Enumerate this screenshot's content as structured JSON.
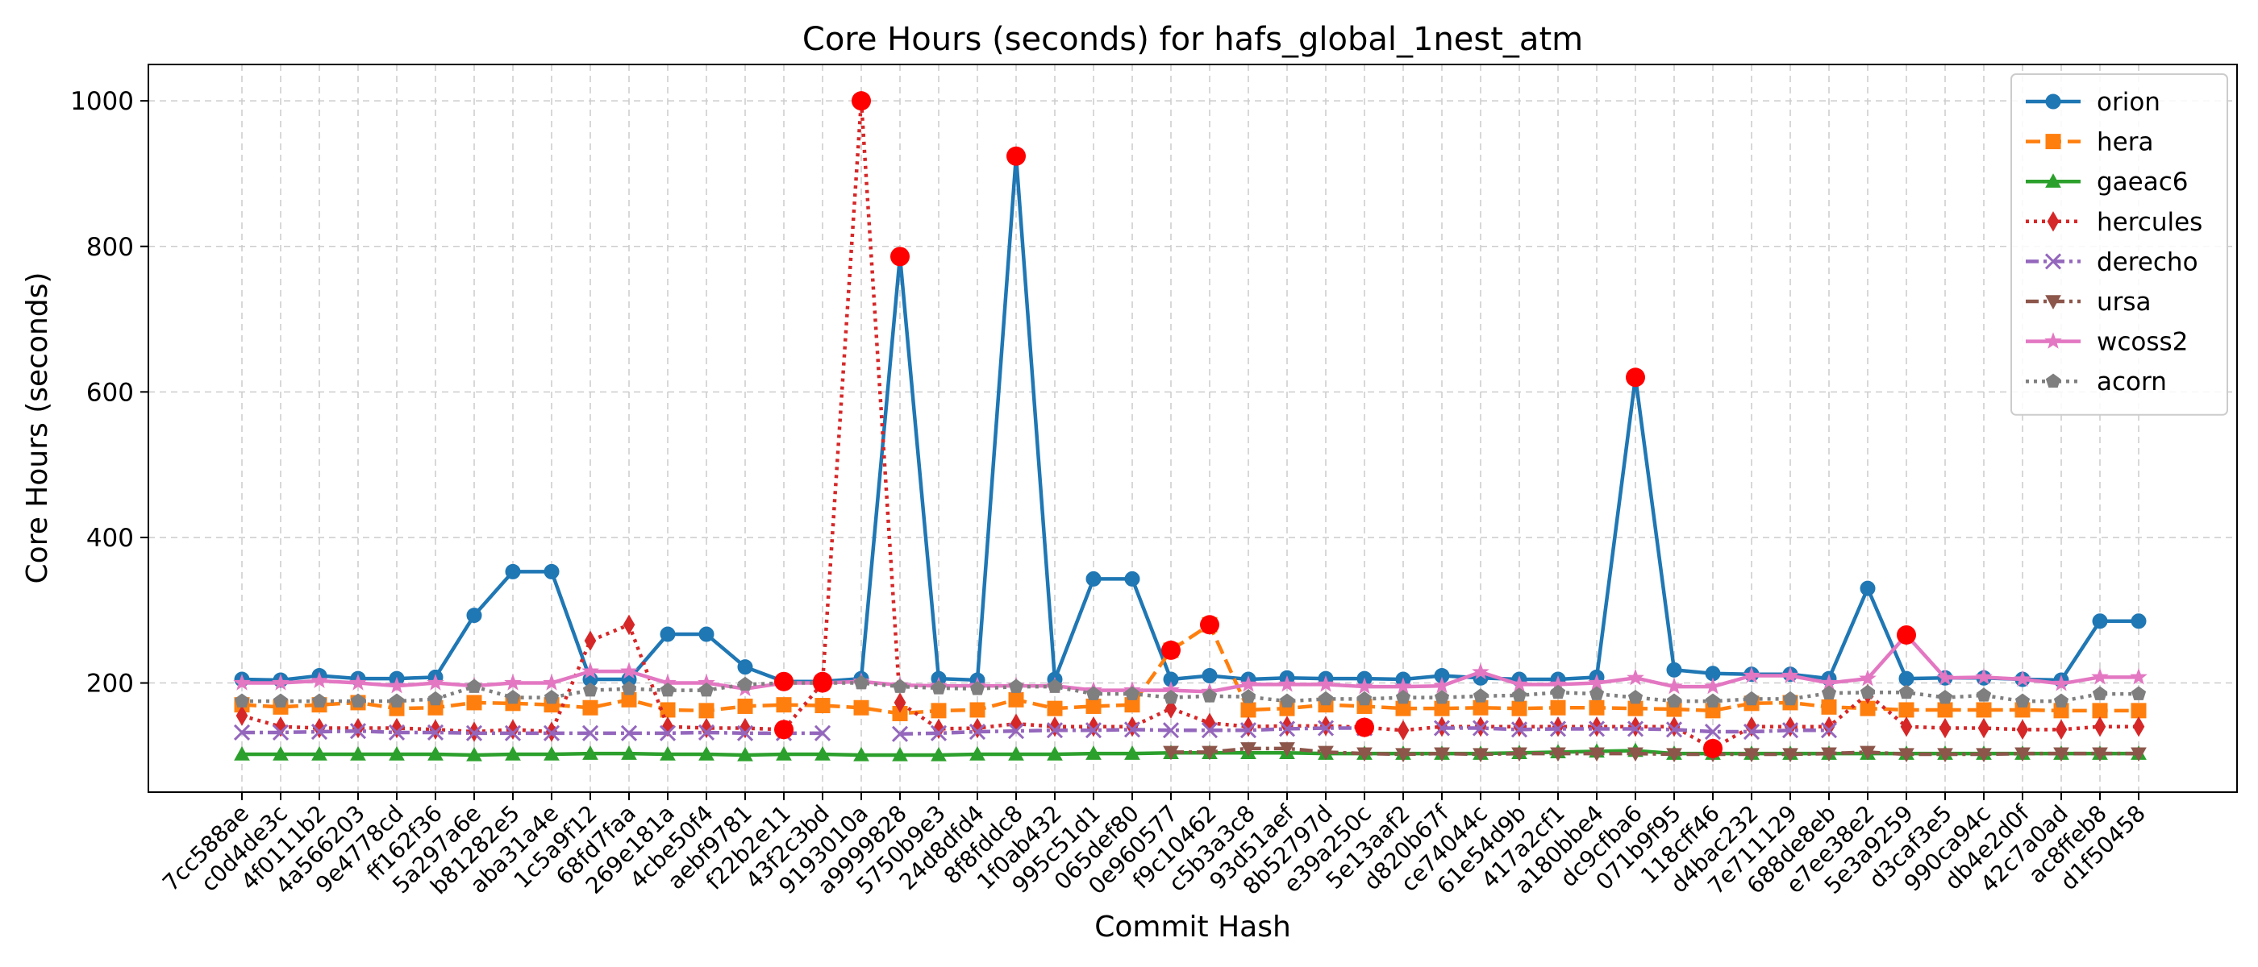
{
  "chart_data": {
    "type": "line",
    "title": "Core Hours (seconds) for hafs_global_1nest_atm",
    "xlabel": "Commit Hash",
    "ylabel": "Core Hours (seconds)",
    "ylim": [
      50,
      1050
    ],
    "yticks": [
      200,
      400,
      600,
      800,
      1000
    ],
    "grid": true,
    "legend_position": "top-right",
    "outlier_color": "#ff0000",
    "categories": [
      "7cc588ae",
      "c0d4de3c",
      "4f0111b2",
      "4a566203",
      "9e4778cd",
      "ff162f36",
      "5a297a6e",
      "b81282e5",
      "aba31a4e",
      "1c5a9f12",
      "68fd7faa",
      "269e181a",
      "4cbe50f4",
      "aebf9781",
      "f22b2e11",
      "43f2c3bd",
      "9193010a",
      "a9999828",
      "5750b9e3",
      "24d8dfd4",
      "8f8fddc8",
      "1f0ab432",
      "995c51d1",
      "065def80",
      "0e960577",
      "f9c10462",
      "c5b3a3c8",
      "93d51aef",
      "8b52797d",
      "e39a250c",
      "5e13aaf2",
      "d820b67f",
      "ce74044c",
      "61e54d9b",
      "417a2cf1",
      "a180bbe4",
      "dc9cfba6",
      "071b9f95",
      "118cff46",
      "d4bac232",
      "7e711129",
      "688de8eb",
      "e7ee38e2",
      "5e3a9259",
      "d3caf3e5",
      "990ca94c",
      "db4e2d0f",
      "42c7a0ad",
      "ac8ffeb8",
      "d1f50458"
    ],
    "series": [
      {
        "name": "orion",
        "color": "#1f77b4",
        "dash": "solid",
        "marker": "circle",
        "values": [
          205,
          204,
          210,
          206,
          206,
          208,
          293,
          353,
          353,
          205,
          205,
          267,
          267,
          222,
          202,
          202,
          206,
          786,
          206,
          204,
          924,
          205,
          343,
          343,
          205,
          210,
          205,
          207,
          206,
          206,
          205,
          210,
          207,
          205,
          205,
          208,
          620,
          218,
          213,
          212,
          212,
          206,
          330,
          206,
          207,
          207,
          205,
          204,
          285,
          285
        ],
        "outliers": [
          14,
          15,
          17,
          20,
          36
        ]
      },
      {
        "name": "hera",
        "color": "#ff7f0e",
        "dash": "dashed",
        "marker": "square",
        "values": [
          170,
          167,
          170,
          173,
          165,
          166,
          173,
          172,
          170,
          166,
          177,
          163,
          162,
          168,
          170,
          169,
          166,
          158,
          162,
          163,
          177,
          165,
          168,
          170,
          245,
          280,
          163,
          165,
          170,
          168,
          165,
          165,
          166,
          165,
          166,
          166,
          165,
          164,
          162,
          172,
          173,
          167,
          165,
          163,
          163,
          163,
          163,
          162,
          162,
          162
        ],
        "outliers": [
          24,
          25
        ]
      },
      {
        "name": "gaeac6",
        "color": "#2ca02c",
        "dash": "solid",
        "marker": "triangle-up",
        "values": [
          102,
          102,
          102,
          102,
          102,
          102,
          101,
          102,
          102,
          103,
          103,
          102,
          102,
          101,
          102,
          102,
          101,
          101,
          101,
          102,
          102,
          102,
          103,
          103,
          104,
          104,
          104,
          104,
          103,
          103,
          103,
          103,
          103,
          104,
          105,
          106,
          107,
          103,
          103,
          103,
          103,
          103,
          103,
          103,
          103,
          103,
          103,
          103,
          103,
          103
        ],
        "outliers": []
      },
      {
        "name": "hercules",
        "color": "#d62728",
        "dash": "dotted",
        "marker": "diamond",
        "values": [
          155,
          140,
          138,
          138,
          138,
          136,
          133,
          136,
          133,
          258,
          280,
          140,
          138,
          138,
          136,
          200,
          1000,
          173,
          137,
          138,
          144,
          140,
          140,
          140,
          165,
          145,
          140,
          141,
          141,
          139,
          135,
          140,
          140,
          140,
          140,
          140,
          140,
          140,
          110,
          140,
          140,
          140,
          185,
          140,
          138,
          138,
          136,
          136,
          140,
          140
        ],
        "outliers": [
          14,
          15,
          16,
          29,
          38
        ]
      },
      {
        "name": "derecho",
        "color": "#9467bd",
        "dash": "dashdot",
        "marker": "x",
        "values": [
          132,
          132,
          133,
          134,
          132,
          132,
          131,
          131,
          131,
          131,
          131,
          131,
          132,
          131,
          131,
          131,
          null,
          130,
          131,
          133,
          134,
          135,
          135,
          136,
          135,
          135,
          135,
          137,
          138,
          138,
          null,
          138,
          138,
          136,
          137,
          137,
          137,
          136,
          133,
          133,
          135,
          135,
          null,
          null,
          null,
          null,
          null,
          null,
          null,
          null
        ],
        "outliers": []
      },
      {
        "name": "ursa",
        "color": "#8c564b",
        "dash": "dashdot",
        "marker": "triangle-down",
        "values": [
          null,
          null,
          null,
          null,
          null,
          null,
          null,
          null,
          null,
          null,
          null,
          null,
          null,
          null,
          null,
          null,
          null,
          null,
          null,
          null,
          null,
          null,
          null,
          null,
          105,
          105,
          110,
          110,
          105,
          103,
          102,
          103,
          102,
          103,
          103,
          103,
          103,
          102,
          102,
          102,
          102,
          103,
          105,
          102,
          102,
          102,
          103,
          103,
          103,
          103
        ],
        "outliers": []
      },
      {
        "name": "wcoss2",
        "color": "#e377c2",
        "dash": "solid",
        "marker": "star",
        "values": [
          200,
          200,
          203,
          200,
          196,
          200,
          196,
          200,
          200,
          216,
          216,
          200,
          200,
          192,
          200,
          200,
          202,
          197,
          196,
          196,
          196,
          196,
          190,
          190,
          190,
          188,
          198,
          198,
          198,
          195,
          195,
          196,
          215,
          198,
          198,
          200,
          207,
          195,
          195,
          210,
          210,
          200,
          206,
          266,
          207,
          208,
          205,
          199,
          208,
          208
        ],
        "outliers": [
          43
        ]
      },
      {
        "name": "acorn",
        "color": "#7f7f7f",
        "dash": "dotted",
        "marker": "pentagon",
        "values": [
          175,
          175,
          175,
          175,
          175,
          178,
          195,
          180,
          180,
          190,
          192,
          190,
          190,
          198,
          200,
          200,
          200,
          195,
          193,
          192,
          195,
          195,
          185,
          185,
          180,
          182,
          181,
          175,
          178,
          178,
          180,
          180,
          182,
          183,
          187,
          185,
          180,
          175,
          175,
          178,
          178,
          186,
          187,
          187,
          180,
          183,
          175,
          175,
          185,
          185
        ],
        "outliers": []
      }
    ]
  }
}
